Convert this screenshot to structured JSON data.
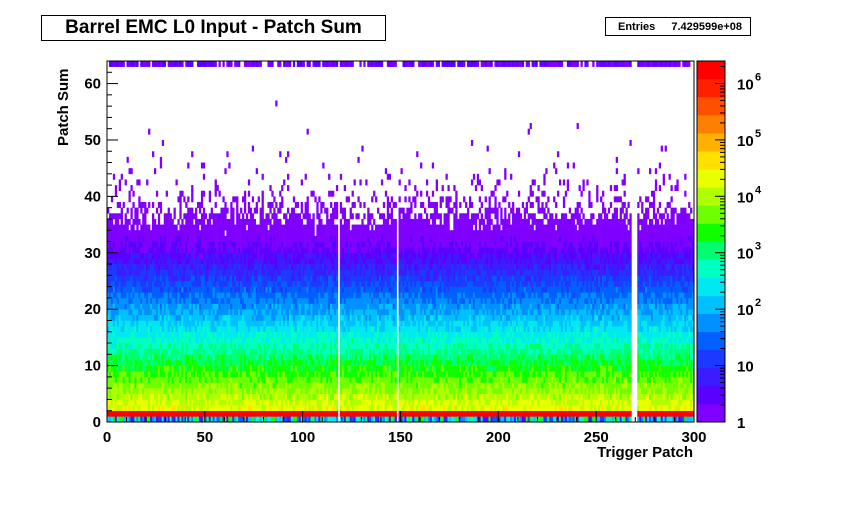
{
  "chart_data": {
    "type": "heatmap",
    "title": "Barrel EMC L0 Input - Patch Sum",
    "xlabel": "Trigger Patch",
    "ylabel": "Patch Sum",
    "xlim": [
      0,
      300
    ],
    "ylim": [
      0,
      64
    ],
    "x_ticks": [
      0,
      50,
      100,
      150,
      200,
      250,
      300
    ],
    "y_ticks": [
      0,
      10,
      20,
      30,
      40,
      50,
      60
    ],
    "z_scale": "log",
    "zlim": [
      1,
      2500000
    ],
    "z_tick_labels": [
      {
        "base": "1",
        "exp": "",
        "value": 1
      },
      {
        "base": "10",
        "exp": "",
        "value": 10
      },
      {
        "base": "10",
        "exp": "2",
        "value": 100
      },
      {
        "base": "10",
        "exp": "3",
        "value": 1000
      },
      {
        "base": "10",
        "exp": "4",
        "value": 10000
      },
      {
        "base": "10",
        "exp": "5",
        "value": 100000
      },
      {
        "base": "10",
        "exp": "6",
        "value": 1000000
      }
    ],
    "entries_label": "Entries",
    "entries_value": "7.429599e+08",
    "empty_patches": [
      118,
      148,
      268,
      269,
      270
    ],
    "saturated_row_bin": 1,
    "top_overflow_row_bin": 63,
    "palette": [
      "#7f00ff",
      "#5a00ff",
      "#3a1cff",
      "#1c3aff",
      "#0060ff",
      "#0090ff",
      "#00c0ff",
      "#00e8f0",
      "#00ffc0",
      "#00ff70",
      "#10ff00",
      "#70ff00",
      "#b0ff00",
      "#e8ff00",
      "#ffe000",
      "#ffb000",
      "#ff8000",
      "#ff5000",
      "#ff2000",
      "#ff0000"
    ]
  }
}
